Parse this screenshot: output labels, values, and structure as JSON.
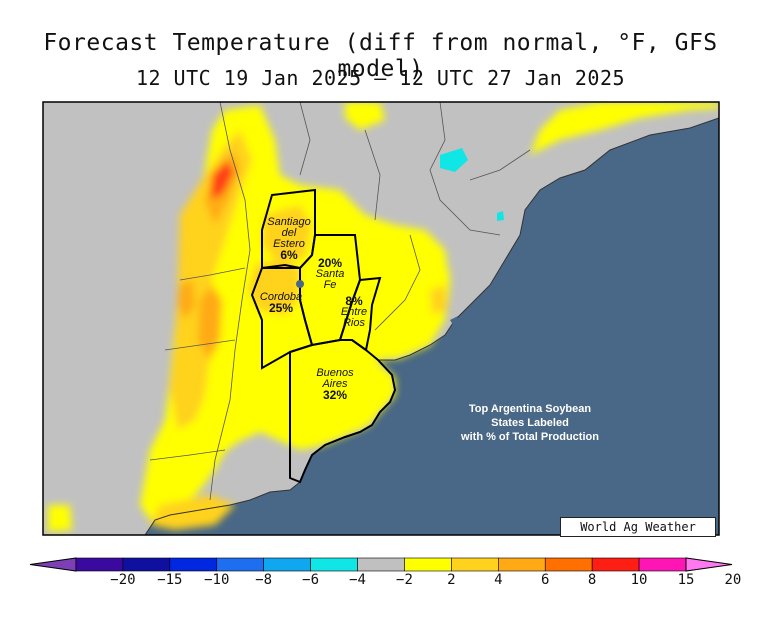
{
  "title": "Forecast Temperature (diff from normal, °F, GFS model)",
  "subtitle": "12 UTC 19 Jan 2025 — 12 UTC 27 Jan 2025",
  "provinces": [
    {
      "name_lines": [
        "Santiago",
        "del",
        "Estero"
      ],
      "pct": "6%"
    },
    {
      "name_lines": [
        "Santa",
        "Fe"
      ],
      "pct": "20%"
    },
    {
      "name_lines": [
        "Cordoba"
      ],
      "pct": "25%"
    },
    {
      "name_lines": [
        "Entre",
        "Rios"
      ],
      "pct": "8%"
    },
    {
      "name_lines": [
        "Buenos",
        "Aires"
      ],
      "pct": "32%"
    }
  ],
  "note_lines": [
    "Top Argentina Soybean",
    "States Labeled",
    "with % of Total Production"
  ],
  "credit": "World Ag Weather",
  "legend": {
    "ticks": [
      "−20",
      "−15",
      "−10",
      "−8",
      "−6",
      "−4",
      "−2",
      "2",
      "4",
      "6",
      "8",
      "10",
      "15",
      "20"
    ],
    "colors": [
      "#7d3fb5",
      "#3a0aa0",
      "#1010a0",
      "#0028e0",
      "#1e6ef0",
      "#0fa8f0",
      "#10e6e6",
      "#c0c0c0",
      "#ffff00",
      "#ffd21e",
      "#ffaa14",
      "#ff7000",
      "#ff1e14",
      "#ff14b4",
      "#ff78f0"
    ]
  },
  "colors": {
    "ocean": "#496786",
    "land_gray": "#c1c1c1",
    "yellow": "#ffff00",
    "gold": "#ffd21e",
    "orange": "#ffaa14",
    "red": "#ff3c14",
    "cyan": "#10e6e6"
  }
}
